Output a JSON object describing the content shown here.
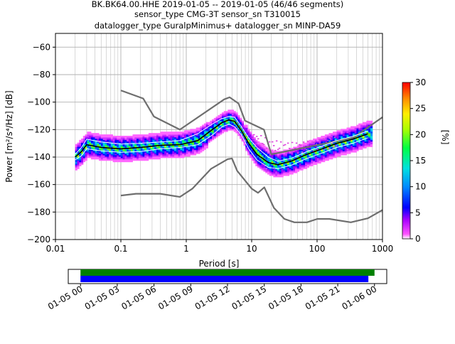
{
  "header": {
    "title_line1": "BK.BK64.00.HHE   2019-01-05 -- 2019-01-05  (46/46 segments)",
    "title_line2": "sensor_type CMG-3T sensor_sn T310015",
    "title_line3": "datalogger_type GuralpMinimus+ datalogger_sn MINP-DA59"
  },
  "chart_data": [
    {
      "type": "heatmap",
      "subtype": "probabilistic-power-spectral-density",
      "xlabel": "Period [s]",
      "ylabel": "Power [m²/s⁴/Hz] [dB]",
      "xscale": "log",
      "xlim": [
        0.01,
        1000
      ],
      "ylim": [
        -200,
        -50
      ],
      "x_ticks": [
        0.01,
        0.1,
        1,
        10,
        100,
        1000
      ],
      "x_tick_labels": [
        "0.01",
        "0.1",
        "1",
        "10",
        "100",
        "1000"
      ],
      "y_ticks": [
        -200,
        -180,
        -160,
        -140,
        -120,
        -100,
        -80,
        -60
      ],
      "y_tick_labels": [
        "−200",
        "−180",
        "−160",
        "−140",
        "−120",
        "−100",
        "−80",
        "−60"
      ],
      "grid": true,
      "colorbar": {
        "label": "[%]",
        "range": [
          0,
          30
        ],
        "ticks": [
          0,
          5,
          10,
          15,
          20,
          25,
          30
        ],
        "tick_labels": [
          "0",
          "5",
          "10",
          "15",
          "20",
          "25",
          "30"
        ]
      },
      "series": [
        {
          "role": "new-high-noise-model",
          "color": "#6e6e6e",
          "points": [
            [
              0.1,
              -91.5
            ],
            [
              0.22,
              -97.4
            ],
            [
              0.32,
              -110.5
            ],
            [
              0.8,
              -120
            ],
            [
              3.8,
              -98
            ],
            [
              4.6,
              -96.5
            ],
            [
              6.3,
              -101
            ],
            [
              7.9,
              -113.5
            ],
            [
              15.4,
              -120
            ],
            [
              20,
              -138
            ],
            [
              354,
              -126
            ],
            [
              1000,
              -111
            ]
          ]
        },
        {
          "role": "new-low-noise-model",
          "color": "#6e6e6e",
          "points": [
            [
              0.1,
              -168
            ],
            [
              0.17,
              -166.7
            ],
            [
              0.4,
              -166.7
            ],
            [
              0.8,
              -169
            ],
            [
              1.24,
              -163
            ],
            [
              2.4,
              -148.5
            ],
            [
              4.3,
              -141.5
            ],
            [
              5,
              -141
            ],
            [
              6,
              -150
            ],
            [
              10,
              -163
            ],
            [
              12.5,
              -166
            ],
            [
              15.6,
              -162
            ],
            [
              21.9,
              -177
            ],
            [
              31.6,
              -185
            ],
            [
              45,
              -187.5
            ],
            [
              70,
              -187.5
            ],
            [
              101,
              -185
            ],
            [
              154,
              -185
            ],
            [
              328,
              -187.5
            ],
            [
              600,
              -184.5
            ],
            [
              1000,
              -178.5
            ]
          ]
        },
        {
          "role": "median",
          "color": "#000000",
          "points": [
            [
              0.02,
              -140
            ],
            [
              0.025,
              -136
            ],
            [
              0.03,
              -131
            ],
            [
              0.05,
              -133
            ],
            [
              0.1,
              -134
            ],
            [
              0.2,
              -133
            ],
            [
              0.4,
              -131.5
            ],
            [
              0.8,
              -131
            ],
            [
              1.5,
              -128
            ],
            [
              2.5,
              -120
            ],
            [
              3.5,
              -115
            ],
            [
              4.5,
              -113
            ],
            [
              5.5,
              -114
            ],
            [
              7,
              -121
            ],
            [
              9,
              -130
            ],
            [
              12,
              -138
            ],
            [
              18,
              -144
            ],
            [
              25,
              -145.5
            ],
            [
              40,
              -143
            ],
            [
              70,
              -138
            ],
            [
              120,
              -134
            ],
            [
              200,
              -130
            ],
            [
              350,
              -127
            ],
            [
              600,
              -123
            ]
          ]
        },
        {
          "role": "psd-high-percentile",
          "color": "#ffffff",
          "points": [
            [
              0.02,
              -138
            ],
            [
              0.025,
              -133
            ],
            [
              0.03,
              -127
            ],
            [
              0.05,
              -129
            ],
            [
              0.1,
              -130.5
            ],
            [
              0.2,
              -130
            ],
            [
              0.4,
              -129
            ],
            [
              0.8,
              -128
            ],
            [
              1.5,
              -123
            ],
            [
              2.5,
              -116
            ],
            [
              3.5,
              -112
            ],
            [
              4.5,
              -110.5
            ],
            [
              5.5,
              -111
            ],
            [
              7,
              -118
            ],
            [
              9,
              -126
            ],
            [
              12,
              -133
            ],
            [
              18,
              -140
            ],
            [
              25,
              -143
            ],
            [
              40,
              -141
            ],
            [
              70,
              -136
            ],
            [
              120,
              -132
            ],
            [
              200,
              -128
            ],
            [
              350,
              -125
            ],
            [
              600,
              -121
            ]
          ]
        },
        {
          "role": "psd-low-percentile",
          "color": "#ffffff",
          "points": [
            [
              0.02,
              -142
            ],
            [
              0.025,
              -139
            ],
            [
              0.03,
              -134
            ],
            [
              0.05,
              -135.5
            ],
            [
              0.1,
              -136.5
            ],
            [
              0.2,
              -136
            ],
            [
              0.4,
              -134
            ],
            [
              0.8,
              -133
            ],
            [
              1.5,
              -131
            ],
            [
              2.5,
              -124
            ],
            [
              3.5,
              -118
            ],
            [
              4.5,
              -116
            ],
            [
              5.5,
              -118
            ],
            [
              7,
              -124
            ],
            [
              9,
              -134
            ],
            [
              12,
              -142
            ],
            [
              18,
              -147.5
            ],
            [
              25,
              -148.5
            ],
            [
              40,
              -146
            ],
            [
              70,
              -141
            ],
            [
              120,
              -137
            ],
            [
              200,
              -133
            ],
            [
              350,
              -130
            ],
            [
              600,
              -126
            ]
          ]
        },
        {
          "role": "sparse-outlier-traces",
          "color": "#cc33cc",
          "points": [
            [
              10,
              -126
            ],
            [
              14,
              -128
            ],
            [
              18,
              -131
            ],
            [
              25,
              -132
            ],
            [
              40,
              -133
            ],
            [
              70,
              -132
            ],
            [
              120,
              -130
            ],
            [
              200,
              -129
            ]
          ]
        }
      ]
    },
    {
      "type": "timeline",
      "xlim_hours": [
        -1,
        25
      ],
      "x_ticks_hours": [
        0,
        3,
        6,
        9,
        12,
        15,
        18,
        21,
        24
      ],
      "x_tick_labels": [
        "01-05 00",
        "01-05 03",
        "01-05 06",
        "01-05 09",
        "01-05 12",
        "01-05 15",
        "01-05 18",
        "01-05 21",
        "01-06 00"
      ],
      "bars": [
        {
          "role": "available-data",
          "color": "#008000",
          "start": 0,
          "end": 24.0
        },
        {
          "role": "used-data",
          "color": "#0000ff",
          "start": 0,
          "end": 23.5
        }
      ]
    }
  ]
}
